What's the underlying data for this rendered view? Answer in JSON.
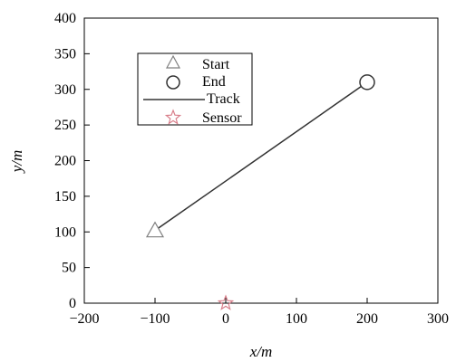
{
  "chart_data": {
    "type": "line",
    "xlabel": "x/m",
    "ylabel": "y/m",
    "xlim": [
      -200,
      300
    ],
    "ylim": [
      0,
      400
    ],
    "xticks": [
      -200,
      -100,
      0,
      100,
      200,
      300
    ],
    "yticks": [
      0,
      50,
      100,
      150,
      200,
      250,
      300,
      350,
      400
    ],
    "xtick_labels": [
      "−200",
      "−100",
      "0",
      "100",
      "200",
      "300"
    ],
    "ytick_labels": [
      "0",
      "50",
      "100",
      "150",
      "200",
      "250",
      "300",
      "350",
      "400"
    ],
    "grid": false,
    "legend_position": "top-left",
    "series": [
      {
        "name": "Start",
        "marker": "triangle",
        "color": "#808080",
        "points": [
          [
            -100,
            102
          ]
        ]
      },
      {
        "name": "End",
        "marker": "circle",
        "color": "#333333",
        "points": [
          [
            200,
            310
          ]
        ]
      },
      {
        "name": "Track",
        "marker": "line",
        "color": "#333333",
        "points": [
          [
            -100,
            102
          ],
          [
            200,
            310
          ]
        ]
      },
      {
        "name": "Sensor",
        "marker": "star",
        "color": "#d9808c",
        "points": [
          [
            0,
            0
          ]
        ]
      }
    ]
  }
}
